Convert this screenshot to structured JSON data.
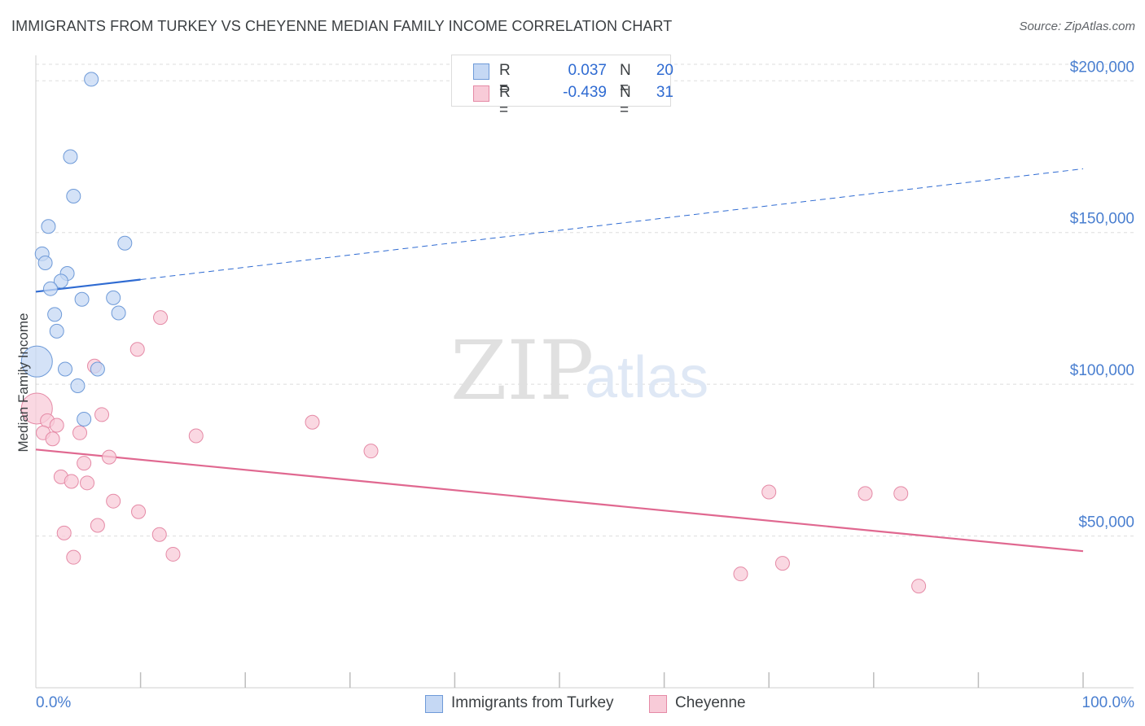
{
  "title": "IMMIGRANTS FROM TURKEY VS CHEYENNE MEDIAN FAMILY INCOME CORRELATION CHART",
  "source": "Source: ZipAtlas.com",
  "watermark": {
    "zip": "ZIP",
    "atlas": "atlas"
  },
  "legend": {
    "rows": [
      {
        "r_label": "R =",
        "r_value": "0.037",
        "n_label": "N =",
        "n_value": "20"
      },
      {
        "r_label": "R =",
        "r_value": "-0.439",
        "n_label": "N =",
        "n_value": "31"
      }
    ]
  },
  "colors": {
    "series1_fill": "#c5d8f4",
    "series1_stroke": "#6e9ad8",
    "series1_line": "#2f6bd2",
    "series2_fill": "#f8cbd8",
    "series2_stroke": "#e58aa6",
    "series2_line": "#e06890",
    "axis_text": "#4a7fd0",
    "grid": "#dddddd"
  },
  "chart_data": {
    "type": "scatter",
    "title": "IMMIGRANTS FROM TURKEY VS CHEYENNE MEDIAN FAMILY INCOME CORRELATION CHART",
    "xlabel": "",
    "ylabel": "Median Family Income",
    "xlim": [
      0,
      100
    ],
    "ylim": [
      0,
      210000
    ],
    "x_tick_labels": [
      "0.0%",
      "100.0%"
    ],
    "y_ticks": [
      {
        "value": 50000,
        "label": "$50,000"
      },
      {
        "value": 100000,
        "label": "$100,000"
      },
      {
        "value": 150000,
        "label": "$150,000"
      },
      {
        "value": 200000,
        "label": "$200,000"
      }
    ],
    "series": [
      {
        "name": "Immigrants from Turkey",
        "points": [
          {
            "x": 5.3,
            "y": 200500
          },
          {
            "x": 3.3,
            "y": 175000
          },
          {
            "x": 3.6,
            "y": 162000
          },
          {
            "x": 1.2,
            "y": 152000
          },
          {
            "x": 8.5,
            "y": 146500
          },
          {
            "x": 0.6,
            "y": 143000
          },
          {
            "x": 0.9,
            "y": 140000
          },
          {
            "x": 3.0,
            "y": 136500
          },
          {
            "x": 2.4,
            "y": 134000
          },
          {
            "x": 1.4,
            "y": 131500
          },
          {
            "x": 4.4,
            "y": 128000
          },
          {
            "x": 7.4,
            "y": 128500
          },
          {
            "x": 1.8,
            "y": 123000
          },
          {
            "x": 7.9,
            "y": 123500
          },
          {
            "x": 2.0,
            "y": 117500
          },
          {
            "x": 0.1,
            "y": 107500,
            "size": "large"
          },
          {
            "x": 2.8,
            "y": 105000
          },
          {
            "x": 5.9,
            "y": 105000
          },
          {
            "x": 4.0,
            "y": 99500
          },
          {
            "x": 4.6,
            "y": 88500
          }
        ],
        "trend": {
          "x_start": 0,
          "y_start": 130500,
          "x_solid_end": 10,
          "y_solid_end": 134500,
          "x_end": 100,
          "y_end": 171000
        }
      },
      {
        "name": "Cheyenne",
        "points": [
          {
            "x": 0.1,
            "y": 92000,
            "size": "large"
          },
          {
            "x": 11.9,
            "y": 122000
          },
          {
            "x": 9.7,
            "y": 111500
          },
          {
            "x": 5.6,
            "y": 106000
          },
          {
            "x": 6.3,
            "y": 90000
          },
          {
            "x": 1.1,
            "y": 88000
          },
          {
            "x": 2.0,
            "y": 86500
          },
          {
            "x": 0.7,
            "y": 84000
          },
          {
            "x": 4.2,
            "y": 84000
          },
          {
            "x": 15.3,
            "y": 83000
          },
          {
            "x": 26.4,
            "y": 87500
          },
          {
            "x": 1.6,
            "y": 82000
          },
          {
            "x": 32.0,
            "y": 78000
          },
          {
            "x": 7.0,
            "y": 76000
          },
          {
            "x": 4.6,
            "y": 74000
          },
          {
            "x": 2.4,
            "y": 69500
          },
          {
            "x": 3.4,
            "y": 68000
          },
          {
            "x": 4.9,
            "y": 67500
          },
          {
            "x": 7.4,
            "y": 61500
          },
          {
            "x": 70.0,
            "y": 64500
          },
          {
            "x": 79.2,
            "y": 64000
          },
          {
            "x": 82.6,
            "y": 64000
          },
          {
            "x": 9.8,
            "y": 58000
          },
          {
            "x": 5.9,
            "y": 53500
          },
          {
            "x": 2.7,
            "y": 51000
          },
          {
            "x": 11.8,
            "y": 50500
          },
          {
            "x": 13.1,
            "y": 44000
          },
          {
            "x": 3.6,
            "y": 43000
          },
          {
            "x": 71.3,
            "y": 41000
          },
          {
            "x": 67.3,
            "y": 37500
          },
          {
            "x": 84.3,
            "y": 33500
          }
        ],
        "trend": {
          "x_start": 0,
          "y_start": 78500,
          "x_end": 100,
          "y_end": 45000
        }
      }
    ]
  },
  "bottom_legend": [
    {
      "label": "Immigrants from Turkey"
    },
    {
      "label": "Cheyenne"
    }
  ]
}
